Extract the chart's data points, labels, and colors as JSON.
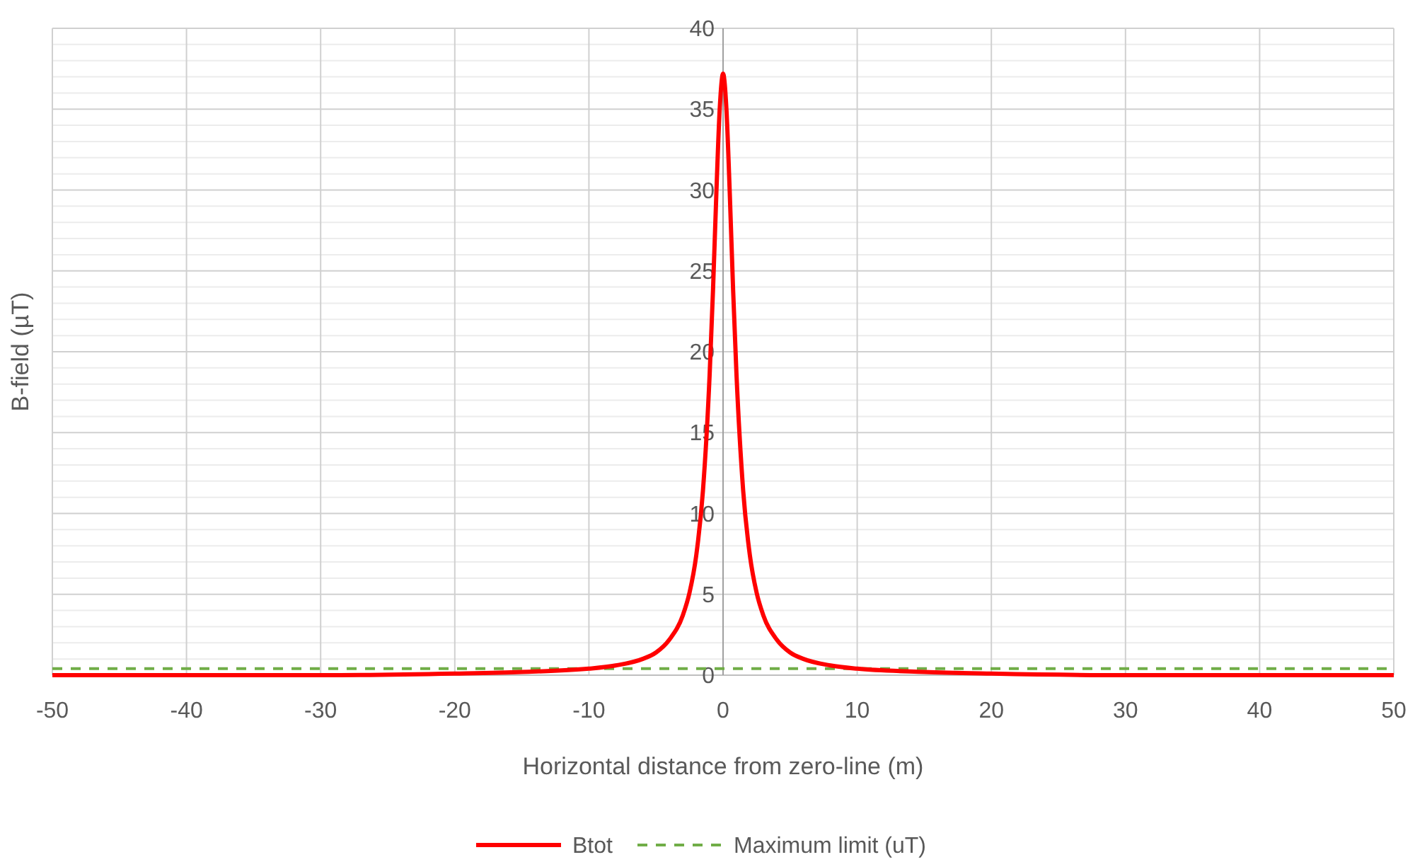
{
  "chart_data": {
    "type": "line",
    "xlabel": "Horizontal distance from zero-line (m)",
    "ylabel": "B-field (µT)",
    "xlim": [
      -50,
      50
    ],
    "ylim": [
      0,
      40
    ],
    "xticks": [
      -50,
      -40,
      -30,
      -20,
      -10,
      0,
      10,
      20,
      30,
      40,
      50
    ],
    "yticks": [
      0,
      {
        "value": 1,
        "label": null
      },
      {
        "value": 2,
        "label": null
      },
      {
        "value": 3,
        "label": null
      },
      {
        "value": 4,
        "label": null
      },
      5,
      {
        "value": 6,
        "label": null
      },
      {
        "value": 7,
        "label": null
      },
      {
        "value": 8,
        "label": null
      },
      {
        "value": 9,
        "label": null
      },
      10,
      {
        "value": 11,
        "label": null
      },
      {
        "value": 12,
        "label": null
      },
      {
        "value": 13,
        "label": null
      },
      {
        "value": 14,
        "label": null
      },
      15,
      {
        "value": 16,
        "label": null
      },
      {
        "value": 17,
        "label": null
      },
      {
        "value": 18,
        "label": null
      },
      {
        "value": 19,
        "label": null
      },
      20,
      {
        "value": 21,
        "label": null
      },
      {
        "value": 22,
        "label": null
      },
      {
        "value": 23,
        "label": null
      },
      {
        "value": 24,
        "label": null
      },
      25,
      {
        "value": 26,
        "label": null
      },
      {
        "value": 27,
        "label": null
      },
      {
        "value": 28,
        "label": null
      },
      {
        "value": 29,
        "label": null
      },
      30,
      {
        "value": 31,
        "label": null
      },
      {
        "value": 32,
        "label": null
      },
      {
        "value": 33,
        "label": null
      },
      {
        "value": 34,
        "label": null
      },
      35,
      {
        "value": 36,
        "label": null
      },
      {
        "value": 37,
        "label": null
      },
      {
        "value": 38,
        "label": null
      },
      {
        "value": 39,
        "label": null
      },
      40
    ],
    "grid": true,
    "legend": "bottom",
    "series": [
      {
        "name": "Btot",
        "color": "#ff0000",
        "line_style": "solid",
        "x": [
          -50,
          -40,
          -30,
          -20,
          -15,
          -10,
          -8,
          -6,
          -5,
          -4,
          -3,
          -2.5,
          -2,
          -1.5,
          -1,
          -0.75,
          -0.5,
          -0.25,
          0,
          0.25,
          0.5,
          0.75,
          1,
          1.5,
          2,
          2.5,
          3,
          4,
          5,
          6,
          8,
          10,
          15,
          20,
          30,
          40,
          50
        ],
        "values": [
          0,
          0,
          0,
          0.1,
          0.2,
          0.4,
          0.6,
          1,
          1.4,
          2.2,
          3.7,
          5.1,
          7.4,
          11.4,
          18.6,
          23.8,
          29.8,
          35,
          37.2,
          35,
          29.8,
          23.8,
          18.6,
          11.4,
          7.4,
          5.1,
          3.7,
          2.2,
          1.4,
          1,
          0.6,
          0.4,
          0.2,
          0.1,
          0,
          0,
          0
        ]
      },
      {
        "name": "Maximum limit (uT)",
        "color": "#70ad47",
        "line_style": "dashed",
        "x": [
          -50,
          50
        ],
        "values": [
          0.4,
          0.4
        ]
      }
    ]
  }
}
